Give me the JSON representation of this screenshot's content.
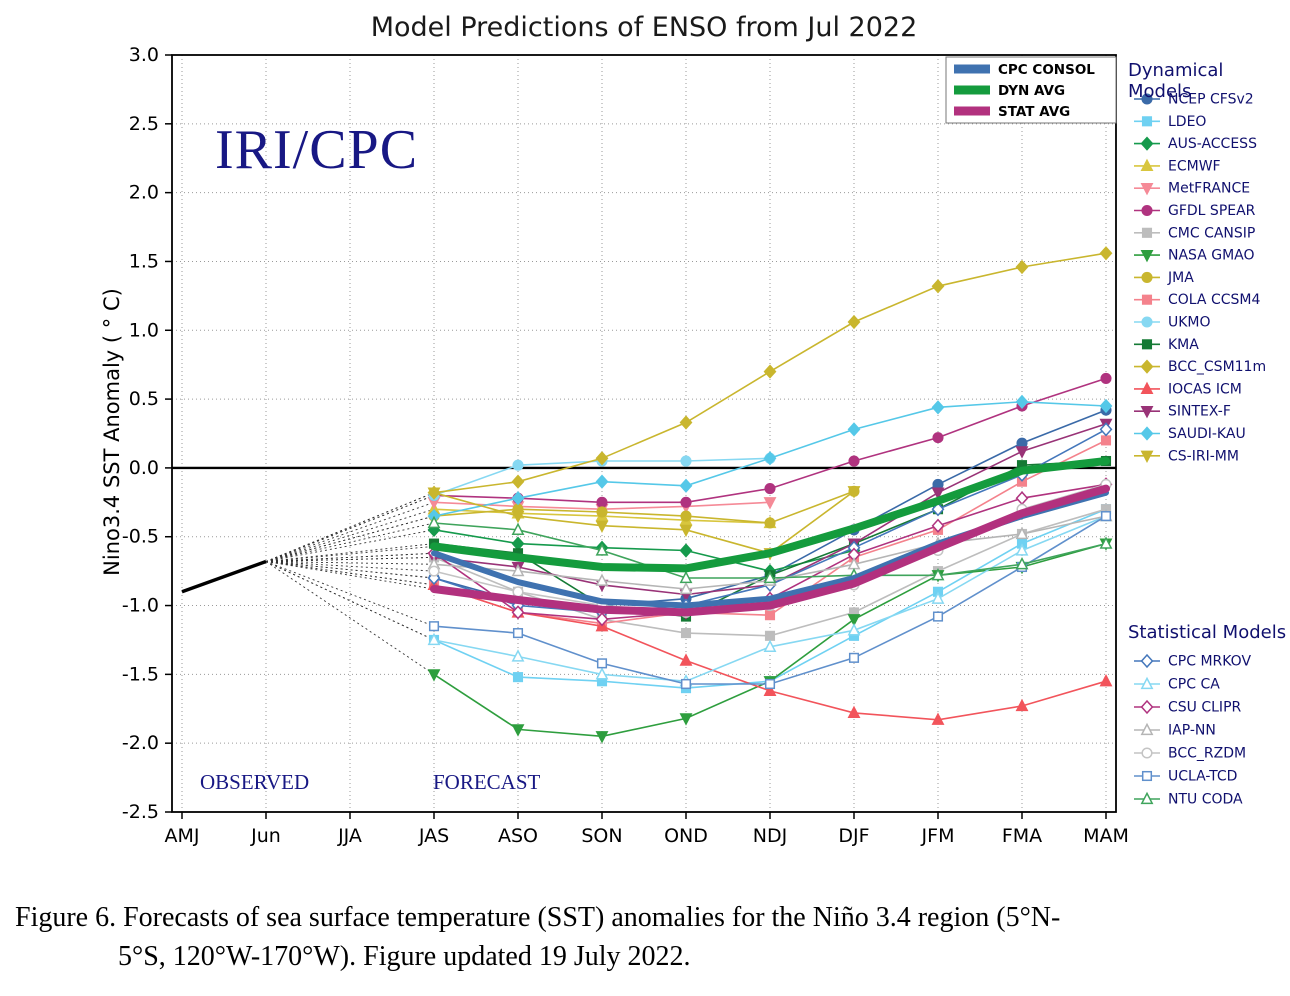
{
  "title": "Model Predictions of ENSO from Jul 2022",
  "watermark": "IRI/CPC",
  "ylabel": "Nino3.4 SST Anomaly ( ° C)",
  "observed_label": "OBSERVED",
  "forecast_label": "FORECAST",
  "legend_groups": {
    "dynamical": "Dynamical Models",
    "statistical": "Statistical Models"
  },
  "caption": {
    "lines": [
      "Figure 6. Forecasts of sea surface temperature (SST) anomalies  for the Niño 3.4 region (5°N-",
      "5°S, 120°W-170°W).  Figure updated 19 July 2022."
    ]
  },
  "chart_data": {
    "type": "line",
    "categories": [
      "AMJ",
      "Jun",
      "JJA",
      "JAS",
      "ASO",
      "SON",
      "OND",
      "NDJ",
      "DJF",
      "JFM",
      "FMA",
      "MAM"
    ],
    "ylim": [
      -2.5,
      3.0
    ],
    "ytick_step": 0.5,
    "zero_line": true,
    "grid": true,
    "forecast_start_index": 3,
    "observed": {
      "categories": [
        "AMJ",
        "Jun"
      ],
      "values": [
        -0.9,
        -0.68
      ],
      "color": "#000000"
    },
    "averages": [
      {
        "name": "CPC CONSOL",
        "color": "#3f72b0",
        "width": 6,
        "values": [
          -0.62,
          -0.83,
          -0.97,
          -1.0,
          -0.95,
          -0.8,
          -0.55,
          -0.35,
          -0.18
        ]
      },
      {
        "name": "DYN AVG",
        "color": "#149b3d",
        "width": 8,
        "values": [
          -0.57,
          -0.65,
          -0.72,
          -0.73,
          -0.62,
          -0.44,
          -0.24,
          -0.02,
          0.05
        ]
      },
      {
        "name": "STAT AVG",
        "color": "#b2317e",
        "width": 8,
        "values": [
          -0.88,
          -0.96,
          -1.03,
          -1.05,
          -1.0,
          -0.84,
          -0.58,
          -0.33,
          -0.15
        ]
      }
    ],
    "dynamical_models": [
      {
        "name": "NCEP CFSv2",
        "color": "#3a6aa8",
        "marker": "circle",
        "values": [
          -0.8,
          -0.97,
          -1.0,
          -0.95,
          -0.78,
          -0.45,
          -0.12,
          0.18,
          0.42
        ]
      },
      {
        "name": "LDEO",
        "color": "#6fd1f2",
        "marker": "square",
        "values": [
          -1.25,
          -1.52,
          -1.55,
          -1.6,
          -1.55,
          -1.22,
          -0.9,
          -0.55,
          -0.3
        ]
      },
      {
        "name": "AUS-ACCESS",
        "color": "#159a4c",
        "marker": "diamond",
        "values": [
          -0.45,
          -0.55,
          -0.58,
          -0.6,
          -0.75,
          -0.6,
          null,
          null,
          null
        ]
      },
      {
        "name": "ECMWF",
        "color": "#d8c63e",
        "marker": "triangle-up",
        "values": [
          -0.3,
          -0.33,
          -0.35,
          -0.38,
          -0.4,
          null,
          null,
          null,
          null
        ]
      },
      {
        "name": "MetFRANCE",
        "color": "#f58a97",
        "marker": "triangle-down",
        "values": [
          -0.25,
          -0.28,
          -0.3,
          -0.28,
          -0.25,
          null,
          null,
          null,
          null
        ]
      },
      {
        "name": "GFDL SPEAR",
        "color": "#b0337f",
        "marker": "circle",
        "values": [
          -0.2,
          -0.22,
          -0.25,
          -0.25,
          -0.15,
          0.05,
          0.22,
          0.45,
          0.65
        ]
      },
      {
        "name": "CMC CANSIP",
        "color": "#bdbdbd",
        "marker": "square",
        "values": [
          -0.65,
          -0.9,
          -1.1,
          -1.2,
          -1.22,
          -1.05,
          -0.75,
          -0.48,
          -0.3
        ]
      },
      {
        "name": "NASA GMAO",
        "color": "#2e9e3e",
        "marker": "triangle-down",
        "values": [
          -1.5,
          -1.9,
          -1.95,
          -1.82,
          -1.55,
          -1.1,
          -0.78,
          -0.72,
          -0.55
        ]
      },
      {
        "name": "JMA",
        "color": "#c9b62e",
        "marker": "circle",
        "values": [
          -0.35,
          -0.3,
          -0.32,
          -0.35,
          -0.4,
          -0.17,
          null,
          null,
          null
        ]
      },
      {
        "name": "COLA CCSM4",
        "color": "#f4828c",
        "marker": "square",
        "values": [
          -0.85,
          -1.05,
          -1.13,
          -1.05,
          -1.07,
          -0.65,
          -0.45,
          -0.1,
          0.2
        ]
      },
      {
        "name": "UKMO",
        "color": "#86d8f2",
        "marker": "circle",
        "values": [
          -0.2,
          0.02,
          0.05,
          0.05,
          0.07,
          null,
          null,
          null,
          null
        ]
      },
      {
        "name": "KMA",
        "color": "#157a35",
        "marker": "square",
        "values": [
          -0.55,
          -0.62,
          -1.0,
          -1.08,
          -0.78,
          -0.55,
          -0.3,
          0.02,
          0.05
        ]
      },
      {
        "name": "BCC_CSM11m",
        "color": "#c9b62e",
        "marker": "diamond",
        "values": [
          -0.18,
          -0.1,
          0.07,
          0.33,
          0.7,
          1.06,
          1.32,
          1.46,
          1.56
        ]
      },
      {
        "name": "IOCAS ICM",
        "color": "#f2545b",
        "marker": "triangle-up",
        "values": [
          -0.85,
          -1.05,
          -1.15,
          -1.4,
          -1.62,
          -1.78,
          -1.83,
          -1.73,
          -1.55
        ]
      },
      {
        "name": "SINTEX-F",
        "color": "#993377",
        "marker": "triangle-down",
        "values": [
          -0.65,
          -0.72,
          -0.85,
          -0.92,
          -0.85,
          -0.55,
          -0.18,
          0.12,
          0.32
        ]
      },
      {
        "name": "SAUDI-KAU",
        "color": "#55c8e8",
        "marker": "diamond",
        "values": [
          -0.35,
          -0.22,
          -0.1,
          -0.13,
          0.07,
          0.28,
          0.44,
          0.48,
          0.45
        ]
      },
      {
        "name": "CS-IRI-MM",
        "color": "#c9b62e",
        "marker": "triangle-down",
        "values": [
          -0.18,
          -0.35,
          -0.42,
          -0.45,
          -0.62,
          -0.17,
          null,
          null,
          null
        ]
      }
    ],
    "statistical_models": [
      {
        "name": "CPC MRKOV",
        "color": "#4477bb",
        "marker": "diamond",
        "open": true,
        "values": [
          -0.8,
          -1.0,
          -1.05,
          -1.0,
          -0.85,
          -0.58,
          -0.3,
          -0.05,
          0.28
        ]
      },
      {
        "name": "CPC CA",
        "color": "#86d8f2",
        "marker": "triangle-up",
        "open": true,
        "values": [
          -1.25,
          -1.37,
          -1.5,
          -1.55,
          -1.3,
          -1.18,
          -0.95,
          -0.6,
          -0.35
        ]
      },
      {
        "name": "CSU CLIPR",
        "color": "#b0337f",
        "marker": "diamond",
        "open": true,
        "values": [
          -0.62,
          -1.05,
          -1.1,
          -1.05,
          -0.95,
          -0.63,
          -0.42,
          -0.22,
          -0.12
        ]
      },
      {
        "name": "IAP-NN",
        "color": "#b5b5b5",
        "marker": "triangle-up",
        "open": true,
        "values": [
          -0.7,
          -0.75,
          -0.82,
          -0.88,
          -0.82,
          -0.7,
          -0.55,
          -0.48,
          -0.35
        ]
      },
      {
        "name": "BCC_RZDM",
        "color": "#c4c4c4",
        "marker": "circle",
        "open": true,
        "values": [
          -0.75,
          -0.9,
          -1.0,
          -1.05,
          -1.0,
          -0.85,
          -0.6,
          -0.3,
          -0.12
        ]
      },
      {
        "name": "UCLA-TCD",
        "color": "#6090cc",
        "marker": "square",
        "open": true,
        "values": [
          -1.15,
          -1.2,
          -1.42,
          -1.57,
          -1.57,
          -1.38,
          -1.08,
          -0.72,
          -0.35
        ]
      },
      {
        "name": "NTU CODA",
        "color": "#3fa45c",
        "marker": "triangle-up",
        "open": true,
        "values": [
          -0.4,
          -0.45,
          -0.6,
          -0.8,
          -0.8,
          -0.78,
          -0.78,
          -0.7,
          -0.55
        ]
      }
    ]
  }
}
